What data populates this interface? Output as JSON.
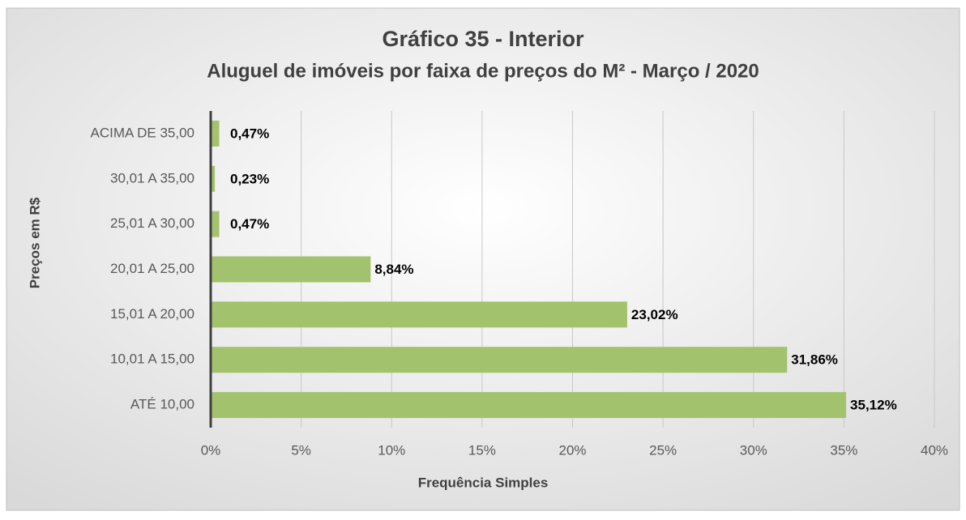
{
  "chart_data": {
    "type": "bar",
    "orientation": "horizontal",
    "title": "Gráfico 35 - Interior",
    "subtitle": "Aluguel de imóveis por faixa de preços do M² - Março / 2020",
    "x_label": "Frequência Simples",
    "y_label": "Preços em R$",
    "categories": [
      "ACIMA DE 35,00",
      "30,01 A 35,00",
      "25,01 A 30,00",
      "20,01 A 25,00",
      "15,01 A 20,00",
      "10,01 A 15,00",
      "ATÉ 10,00"
    ],
    "values": [
      0.47,
      0.23,
      0.47,
      8.84,
      23.02,
      31.86,
      35.12
    ],
    "value_labels": [
      "0,47%",
      "0,23%",
      "0,47%",
      "8,84%",
      "23,02%",
      "31,86%",
      "35,12%"
    ],
    "color": "#a3c26d",
    "xlim": [
      0,
      40
    ],
    "xticks": [
      {
        "value": 0,
        "label": "0%"
      },
      {
        "value": 5,
        "label": "5%"
      },
      {
        "value": 10,
        "label": "10%"
      },
      {
        "value": 15,
        "label": "15%"
      },
      {
        "value": 20,
        "label": "20%"
      },
      {
        "value": 25,
        "label": "25%"
      },
      {
        "value": 30,
        "label": "30%"
      },
      {
        "value": 35,
        "label": "35%"
      },
      {
        "value": 40,
        "label": "40%"
      }
    ],
    "grid": true
  }
}
